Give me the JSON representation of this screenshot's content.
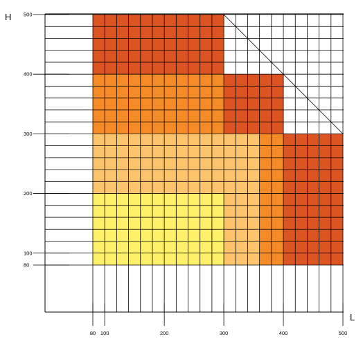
{
  "chart_data": {
    "type": "heatmap",
    "title": "",
    "xlabel": "L",
    "ylabel": "H",
    "x_ticks": [
      80,
      100,
      200,
      300,
      400,
      500
    ],
    "y_ticks": [
      80,
      100,
      200,
      300,
      400,
      500
    ],
    "xlim": [
      0,
      500
    ],
    "ylim": [
      0,
      500
    ],
    "grid_step_x": 20,
    "grid_step_y": 20,
    "grid": true,
    "regions": [
      {
        "zone": 1,
        "color": "#fff06a",
        "x_range": [
          80,
          300
        ],
        "y_range": [
          80,
          200
        ]
      },
      {
        "zone": 2,
        "color": "#fdc46e",
        "x_range": [
          300,
          360
        ],
        "y_range": [
          80,
          200
        ]
      },
      {
        "zone": 2,
        "color": "#fdc46e",
        "x_range": [
          80,
          360
        ],
        "y_range": [
          200,
          300
        ]
      },
      {
        "zone": 3,
        "color": "#f48b26",
        "x_range": [
          360,
          400
        ],
        "y_range": [
          80,
          300
        ]
      },
      {
        "zone": 3,
        "color": "#f48b26",
        "x_range": [
          80,
          300
        ],
        "y_range": [
          300,
          400
        ]
      },
      {
        "zone": 4,
        "color": "#dc5422",
        "x_range": [
          400,
          500
        ],
        "y_range": [
          80,
          300
        ]
      },
      {
        "zone": 4,
        "color": "#dc5422",
        "x_range": [
          300,
          400
        ],
        "y_range": [
          300,
          400
        ]
      },
      {
        "zone": 4,
        "color": "#dc5422",
        "x_range": [
          80,
          300
        ],
        "y_range": [
          400,
          500
        ]
      }
    ],
    "diagonal_limit": {
      "from": [
        300,
        500
      ],
      "to": [
        500,
        300
      ]
    }
  }
}
